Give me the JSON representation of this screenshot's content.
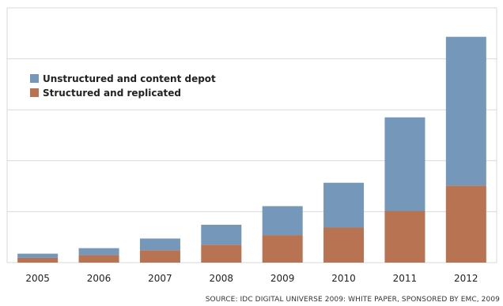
{
  "chart_data": {
    "type": "bar",
    "stacked": true,
    "categories": [
      "2005",
      "2006",
      "2007",
      "2008",
      "2009",
      "2010",
      "2011",
      "2012"
    ],
    "series": [
      {
        "name": "Structured and replicated",
        "color": "#b87352",
        "values": [
          7,
          11,
          18,
          26,
          40,
          51,
          75,
          112
        ]
      },
      {
        "name": "Unstructured and content depot",
        "color": "#7597b9",
        "values": [
          6,
          10,
          17,
          29,
          42,
          65,
          136,
          216
        ]
      }
    ],
    "ylim": [
      0,
      370
    ],
    "grid": true,
    "legend": "top-left",
    "source": "SOURCE: IDC DIGITAL UNIVERSE 2009: WHITE PAPER, SPONSORED BY EMC, 2009"
  }
}
